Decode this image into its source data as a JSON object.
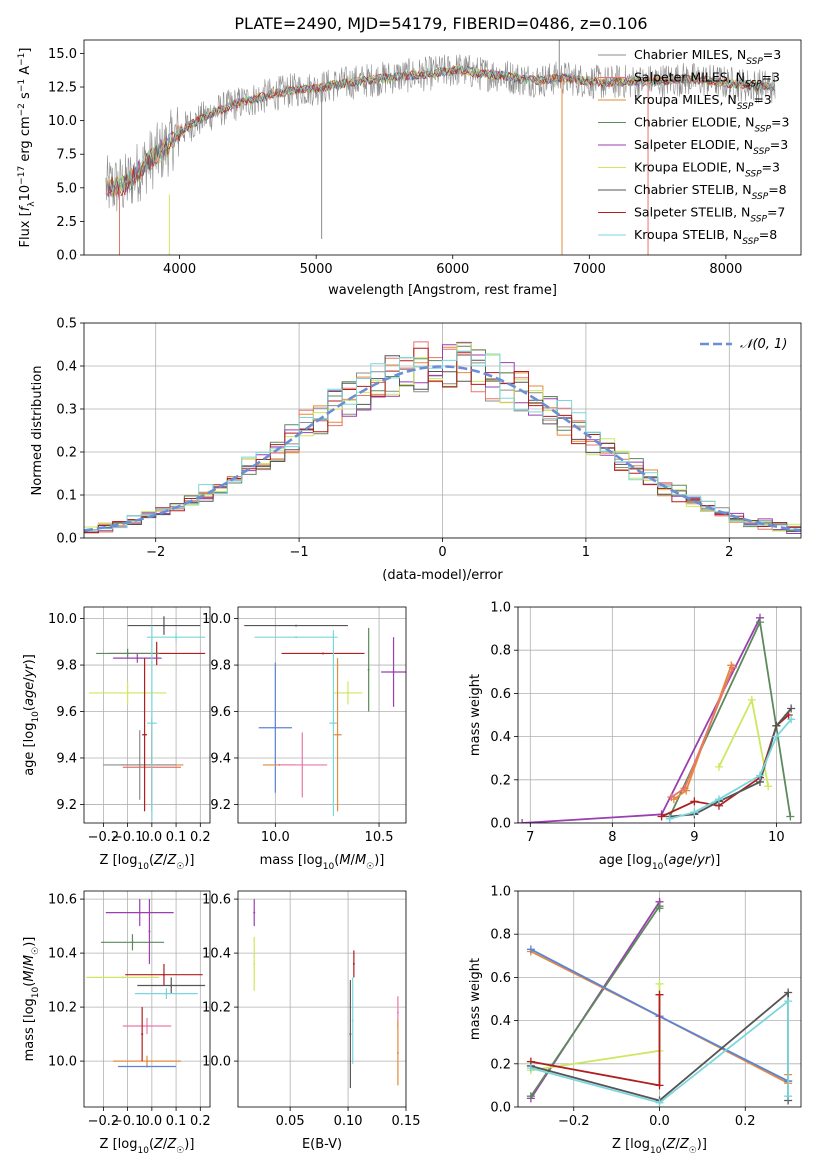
{
  "figure": {
    "title": "PLATE=2490, MJD=54179, FIBERID=0486, z=0.106"
  },
  "colors": {
    "chabrier_miles": "#8c8c8c",
    "salpeter_miles": "#e8746b",
    "kroupa_miles": "#e48a3a",
    "chabrier_elodie": "#5c8a5c",
    "salpeter_elodie": "#9a3fb0",
    "kroupa_elodie": "#cce860",
    "chabrier_stelib": "#555555",
    "salpeter_stelib": "#b01e1e",
    "kroupa_stelib": "#7ad6dc",
    "normal_curve": "#6a8fd6",
    "extra_blue": "#5b84d8",
    "extra_pink": "#e87aa8"
  },
  "chart_data": [
    {
      "id": "spectrum",
      "type": "line",
      "title": "PLATE=2490, MJD=54179, FIBERID=0486, z=0.106",
      "xlabel": "wavelength [Angstrom, rest frame]",
      "ylabel": "Flux [f_λ 10^-17 erg cm^-2 s^-1 A^-1]",
      "xlim": [
        3300,
        8550
      ],
      "ylim": [
        0,
        16
      ],
      "xticks": [
        4000,
        5000,
        6000,
        7000,
        8000
      ],
      "yticks": [
        0.0,
        2.5,
        5.0,
        7.5,
        10.0,
        12.5,
        15.0
      ],
      "grid": false,
      "legend_position": "right",
      "continuum": {
        "x": [
          3450,
          3600,
          3750,
          3900,
          4000,
          4100,
          4250,
          4400,
          4550,
          4700,
          4850,
          5000,
          5150,
          5300,
          5450,
          5600,
          5750,
          5900,
          6050,
          6200,
          6350,
          6500,
          6650,
          6800,
          6950,
          7100,
          7250,
          7400,
          7550,
          7700,
          7850,
          8000,
          8200,
          8400
        ],
        "y": [
          5.0,
          5.2,
          6.8,
          8.0,
          9.2,
          9.8,
          10.6,
          11.2,
          11.6,
          12.0,
          12.3,
          12.4,
          12.7,
          12.9,
          13.1,
          13.3,
          13.4,
          13.6,
          13.8,
          13.5,
          13.4,
          13.1,
          13.0,
          13.2,
          13.0,
          12.8,
          12.9,
          12.9,
          13.0,
          13.1,
          13.0,
          12.8,
          12.6,
          12.5
        ]
      },
      "series": [
        {
          "name": "Chabrier MILES, N_SSP=3"
        },
        {
          "name": "Salpeter MILES, N_SSP=3"
        },
        {
          "name": "Kroupa MILES, N_SSP=3"
        },
        {
          "name": "Chabrier ELODIE, N_SSP=3"
        },
        {
          "name": "Salpeter ELODIE, N_SSP=3"
        },
        {
          "name": "Kroupa ELODIE, N_SSP=3"
        },
        {
          "name": "Chabrier STELIB, N_SSP=8"
        },
        {
          "name": "Salpeter STELIB, N_SSP=7"
        },
        {
          "name": "Kroupa STELIB, N_SSP=8"
        }
      ]
    },
    {
      "id": "residuals",
      "type": "line",
      "xlabel": "(data-model)/error",
      "ylabel": "Normed distribution",
      "xlim": [
        -2.5,
        2.5
      ],
      "ylim": [
        0,
        0.5
      ],
      "xticks": [
        -2,
        -1,
        0,
        1,
        2
      ],
      "yticks": [
        0.0,
        0.1,
        0.2,
        0.3,
        0.4,
        0.5
      ],
      "grid": true,
      "legend_position": "top-right",
      "legend_label": "𝒩(0, 1)",
      "bin_width": 0.1
    },
    {
      "id": "age_vs_Z",
      "type": "scatter",
      "xlabel": "Z [log10(Z/Z☉)]",
      "ylabel": "age [log10(age/yr)]",
      "xlim": [
        -0.28,
        0.24
      ],
      "ylim": [
        9.12,
        10.05
      ],
      "xticks": [
        -0.2,
        -0.1,
        0.0,
        0.1,
        0.2
      ],
      "yticks": [
        9.2,
        9.4,
        9.6,
        9.8,
        10.0
      ],
      "grid": true,
      "points": [
        {
          "series": "Chabrier STELIB",
          "x": 0.05,
          "xerr": 0.15,
          "y": 9.97,
          "yerr": 0.04
        },
        {
          "series": "Kroupa STELIB",
          "x": 0.1,
          "xerr": 0.12,
          "y": 9.92,
          "yerr": 0.02
        },
        {
          "series": "Salpeter STELIB",
          "x": 0.02,
          "xerr": 0.2,
          "y": 9.85,
          "yerr": 0.05
        },
        {
          "series": "Chabrier ELODIE",
          "x": -0.1,
          "xerr": 0.13,
          "y": 9.85,
          "yerr": 0.02
        },
        {
          "series": "Salpeter ELODIE",
          "x": -0.06,
          "xerr": 0.1,
          "y": 9.83,
          "yerr": 0.02
        },
        {
          "series": "Kroupa ELODIE",
          "x": -0.1,
          "xerr": 0.16,
          "y": 9.68,
          "yerr": 0.05
        },
        {
          "series": "Kroupa MILES",
          "x": 0.0,
          "xerr": 0.13,
          "y": 9.37,
          "yerr": 0.2
        },
        {
          "series": "Salpeter MILES",
          "x": 0.0,
          "xerr": 0.12,
          "y": 9.36,
          "yerr": 0.15
        },
        {
          "series": "Chabrier MILES",
          "x": -0.05,
          "xerr": 0.15,
          "y": 9.37,
          "yerr": 0.15
        },
        {
          "series": "Kroupa STELIB",
          "x": 0.0,
          "xerr": 0.02,
          "y": 9.55,
          "yerr": 0.42
        },
        {
          "series": "Salpeter STELIB",
          "x": -0.03,
          "xerr": 0.01,
          "y": 9.5,
          "yerr": 0.33
        }
      ]
    },
    {
      "id": "age_vs_mass",
      "type": "scatter",
      "xlabel": "mass [log10(M/M☉)]",
      "ylabel": "",
      "xlim": [
        9.82,
        10.63
      ],
      "ylim": [
        9.12,
        10.05
      ],
      "xticks": [
        10.0,
        10.5
      ],
      "yticks": [
        9.2,
        9.4,
        9.6,
        9.8,
        10.0
      ],
      "grid": true,
      "points": [
        {
          "series": "Chabrier STELIB",
          "x": 10.1,
          "xerr": 0.25,
          "y": 9.97,
          "yerr": 0.0
        },
        {
          "series": "Kroupa STELIB",
          "x": 10.1,
          "xerr": 0.2,
          "y": 9.92,
          "yerr": 0.0
        },
        {
          "series": "Salpeter STELIB",
          "x": 10.23,
          "xerr": 0.2,
          "y": 9.85,
          "yerr": 0.0
        },
        {
          "series": "Chabrier ELODIE",
          "x": 10.45,
          "xerr": 0.0,
          "y": 9.78,
          "yerr": 0.18
        },
        {
          "series": "Salpeter ELODIE",
          "x": 10.57,
          "xerr": 0.06,
          "y": 9.77,
          "yerr": 0.15
        },
        {
          "series": "Kroupa ELODIE",
          "x": 10.35,
          "xerr": 0.07,
          "y": 9.68,
          "yerr": 0.05
        },
        {
          "series": "Extra blue",
          "x": 10.0,
          "xerr": 0.08,
          "y": 9.53,
          "yerr": 0.28
        },
        {
          "series": "Kroupa MILES",
          "x": 10.02,
          "xerr": 0.08,
          "y": 9.37,
          "yerr": 0.0
        },
        {
          "series": "Extra pink",
          "x": 10.13,
          "xerr": 0.12,
          "y": 9.37,
          "yerr": 0.14
        },
        {
          "series": "Kroupa STELIB",
          "x": 10.28,
          "xerr": 0.02,
          "y": 9.55,
          "yerr": 0.4
        },
        {
          "series": "Kroupa MILES",
          "x": 10.3,
          "xerr": 0.02,
          "y": 9.5,
          "yerr": 0.33
        }
      ]
    },
    {
      "id": "mass_weight_vs_age",
      "type": "line",
      "xlabel": "age [log10(age/yr)]",
      "ylabel": "mass weight",
      "xlim": [
        6.85,
        10.3
      ],
      "ylim": [
        0,
        1.0
      ],
      "xticks": [
        7,
        8,
        9,
        10
      ],
      "yticks": [
        0.0,
        0.2,
        0.4,
        0.6,
        0.8,
        1.0
      ],
      "grid": true,
      "series": [
        {
          "key": "salpeter_elodie",
          "x": [
            6.9,
            8.6,
            9.8
          ],
          "y": [
            0.0,
            0.04,
            0.95
          ]
        },
        {
          "key": "chabrier_elodie",
          "x": [
            8.7,
            9.8,
            10.17
          ],
          "y": [
            0.03,
            0.93,
            0.03
          ]
        },
        {
          "key": "kroupa_miles",
          "x": [
            8.75,
            8.9,
            9.45
          ],
          "y": [
            0.11,
            0.15,
            0.73
          ]
        },
        {
          "key": "salpeter_miles",
          "x": [
            8.72,
            8.88,
            9.47
          ],
          "y": [
            0.12,
            0.16,
            0.72
          ]
        },
        {
          "key": "kroupa_elodie",
          "x": [
            9.3,
            9.7,
            9.9
          ],
          "y": [
            0.26,
            0.57,
            0.17
          ]
        },
        {
          "key": "salpeter_stelib",
          "x": [
            8.6,
            9.0,
            9.3,
            9.8,
            10.0,
            10.15
          ],
          "y": [
            0.03,
            0.1,
            0.08,
            0.21,
            0.45,
            0.5
          ]
        },
        {
          "key": "chabrier_stelib",
          "x": [
            8.7,
            9.0,
            9.3,
            9.8,
            10.0,
            10.18
          ],
          "y": [
            0.03,
            0.04,
            0.1,
            0.19,
            0.45,
            0.53
          ]
        },
        {
          "key": "kroupa_stelib",
          "x": [
            8.7,
            9.0,
            9.3,
            9.8,
            10.0,
            10.18
          ],
          "y": [
            0.02,
            0.05,
            0.11,
            0.22,
            0.4,
            0.48
          ]
        }
      ]
    },
    {
      "id": "mass_vs_Z",
      "type": "scatter",
      "xlabel": "Z [log10(Z/Z☉)]",
      "ylabel": "mass [log10(M/M☉)]",
      "xlim": [
        -0.28,
        0.24
      ],
      "ylim": [
        9.83,
        10.63
      ],
      "xticks": [
        -0.2,
        -0.1,
        0.0,
        0.1,
        0.2
      ],
      "yticks": [
        10.0,
        10.2,
        10.4,
        10.6
      ],
      "grid": true,
      "points": [
        {
          "series": "Salpeter ELODIE",
          "x": -0.05,
          "xerr": 0.14,
          "y": 10.55,
          "yerr": 0.05
        },
        {
          "series": "Chabrier ELODIE",
          "x": -0.08,
          "xerr": 0.13,
          "y": 10.44,
          "yerr": 0.03
        },
        {
          "series": "Salpeter STELIB",
          "x": 0.05,
          "xerr": 0.16,
          "y": 10.32,
          "yerr": 0.04
        },
        {
          "series": "Kroupa ELODIE",
          "x": -0.12,
          "xerr": 0.15,
          "y": 10.31,
          "yerr": 0.0
        },
        {
          "series": "Chabrier STELIB",
          "x": 0.08,
          "xerr": 0.14,
          "y": 10.28,
          "yerr": 0.03
        },
        {
          "series": "Kroupa STELIB",
          "x": 0.06,
          "xerr": 0.13,
          "y": 10.25,
          "yerr": 0.02
        },
        {
          "series": "Extra pink",
          "x": -0.02,
          "xerr": 0.1,
          "y": 10.13,
          "yerr": 0.03
        },
        {
          "series": "Kroupa MILES",
          "x": -0.02,
          "xerr": 0.14,
          "y": 10.0,
          "yerr": 0.02
        },
        {
          "series": "Extra blue",
          "x": -0.02,
          "xerr": 0.12,
          "y": 9.98,
          "yerr": 0.0
        },
        {
          "series": "Salpeter ELODIE",
          "x": -0.01,
          "xerr": 0.0,
          "y": 10.48,
          "yerr": 0.12
        },
        {
          "series": "Salpeter STELIB",
          "x": -0.04,
          "xerr": 0.0,
          "y": 10.1,
          "yerr": 0.1
        }
      ]
    },
    {
      "id": "mass_vs_ebv",
      "type": "scatter",
      "xlabel": "E(B-V)",
      "ylabel": "",
      "xlim": [
        0.005,
        0.15
      ],
      "ylim": [
        9.83,
        10.63
      ],
      "xticks": [
        0.05,
        0.1,
        0.15
      ],
      "yticks": [
        10.0,
        10.2,
        10.4,
        10.6
      ],
      "grid": true,
      "points": [
        {
          "series": "Salpeter ELODIE",
          "x": 0.019,
          "y": 10.55,
          "yerr": 0.05
        },
        {
          "series": "Kroupa ELODIE",
          "x": 0.019,
          "y": 10.36,
          "yerr": 0.1
        },
        {
          "series": "Salpeter STELIB",
          "x": 0.105,
          "y": 10.36,
          "yerr": 0.05
        },
        {
          "series": "Kroupa STELIB",
          "x": 0.104,
          "y": 10.15,
          "yerr": 0.16
        },
        {
          "series": "Chabrier STELIB",
          "x": 0.102,
          "y": 10.1,
          "yerr": 0.2
        },
        {
          "series": "Extra pink",
          "x": 0.143,
          "y": 10.18,
          "yerr": 0.06
        },
        {
          "series": "Kroupa MILES",
          "x": 0.143,
          "y": 10.03,
          "yerr": 0.12
        }
      ]
    },
    {
      "id": "mass_weight_vs_Z",
      "type": "line",
      "xlabel": "Z [log10(Z/Z☉)]",
      "ylabel": "mass weight",
      "xlim": [
        -0.33,
        0.33
      ],
      "ylim": [
        0,
        1.0
      ],
      "xticks": [
        -0.2,
        0.0,
        0.2
      ],
      "yticks": [
        0.0,
        0.2,
        0.4,
        0.6,
        0.8,
        1.0
      ],
      "grid": true,
      "series": [
        {
          "key": "salpeter_elodie",
          "x": [
            -0.3,
            0.0,
            0.0
          ],
          "y": [
            0.04,
            0.95,
            0.93
          ]
        },
        {
          "key": "chabrier_elodie",
          "x": [
            -0.3,
            0.0,
            0.0
          ],
          "y": [
            0.05,
            0.93,
            0.92
          ]
        },
        {
          "key": "kroupa_miles",
          "x": [
            -0.3,
            0.0,
            0.3,
            0.3
          ],
          "y": [
            0.72,
            0.42,
            0.11,
            0.15
          ]
        },
        {
          "key": "extra_blue",
          "x": [
            -0.3,
            0.0,
            0.3,
            0.3
          ],
          "y": [
            0.73,
            0.42,
            0.12,
            0.12
          ]
        },
        {
          "key": "kroupa_elodie",
          "x": [
            -0.3,
            0.0,
            0.0
          ],
          "y": [
            0.17,
            0.26,
            0.57
          ]
        },
        {
          "key": "salpeter_stelib",
          "x": [
            -0.3,
            0.0,
            0.0
          ],
          "y": [
            0.21,
            0.1,
            0.52
          ]
        },
        {
          "key": "chabrier_stelib",
          "x": [
            -0.3,
            0.0,
            0.3,
            0.3
          ],
          "y": [
            0.19,
            0.03,
            0.53,
            0.03
          ]
        },
        {
          "key": "kroupa_stelib",
          "x": [
            -0.3,
            0.0,
            0.3,
            0.3
          ],
          "y": [
            0.18,
            0.02,
            0.49,
            0.05
          ]
        }
      ]
    }
  ]
}
